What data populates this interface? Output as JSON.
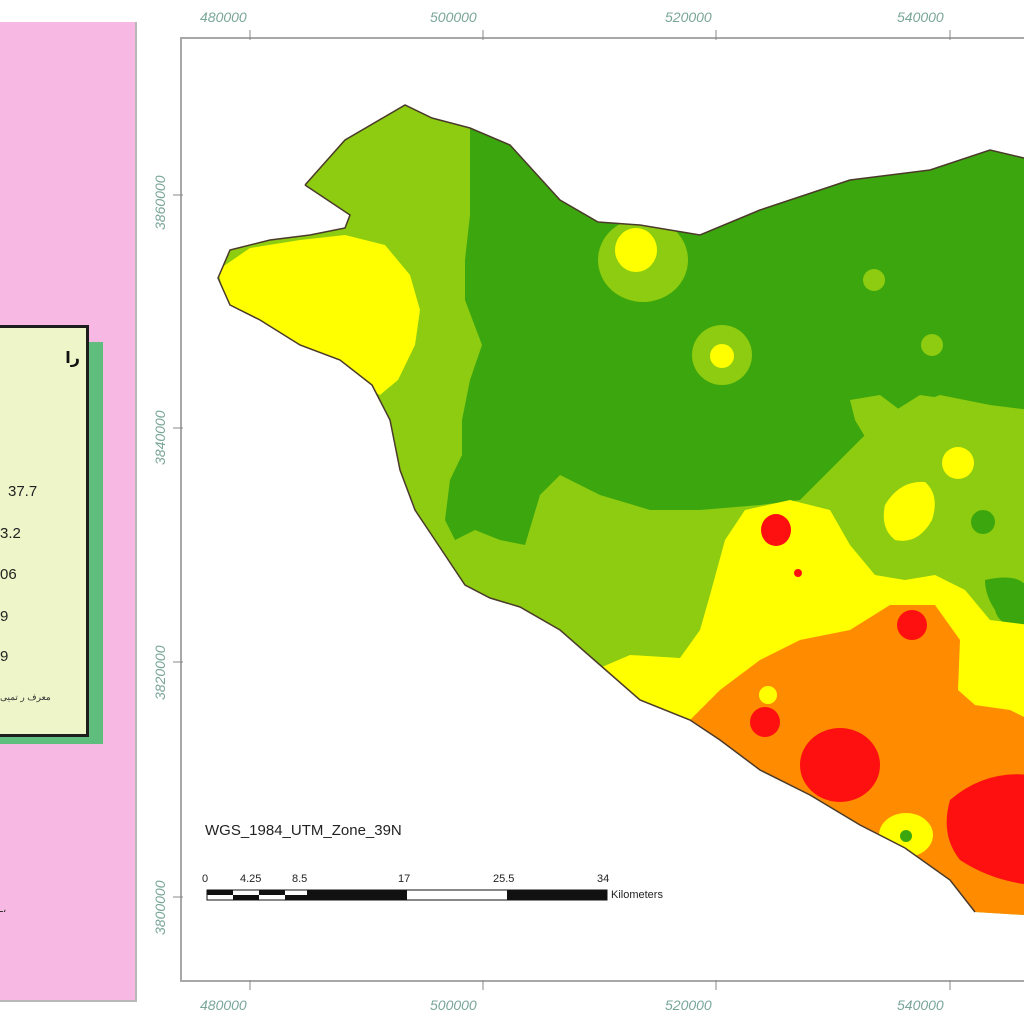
{
  "legend": {
    "title": "را",
    "values": [
      "37.7",
      "3.2",
      "06",
      "9",
      "9"
    ],
    "note": "معرف ر تمیی"
  },
  "projection_label": "WGS_1984_UTM_Zone_39N",
  "scalebar": {
    "ticks": [
      "0",
      "4.25",
      "8.5",
      "17",
      "25.5",
      "34"
    ],
    "unit": "Kilometers"
  },
  "x_coords": [
    "480000",
    "500000",
    "520000",
    "540000"
  ],
  "y_coords": [
    "3860000",
    "3840000",
    "3820000",
    "3800000"
  ],
  "colors": {
    "dark_green": "#3ca60e",
    "light_green": "#8dcc10",
    "yellow": "#ffff00",
    "orange": "#ff8c00",
    "red": "#ff1010",
    "pink_panel": "#f7b9e3",
    "legend_bg": "#eef5c9",
    "coord_text": "#7aa69a"
  },
  "small_glyph": "ـ،"
}
